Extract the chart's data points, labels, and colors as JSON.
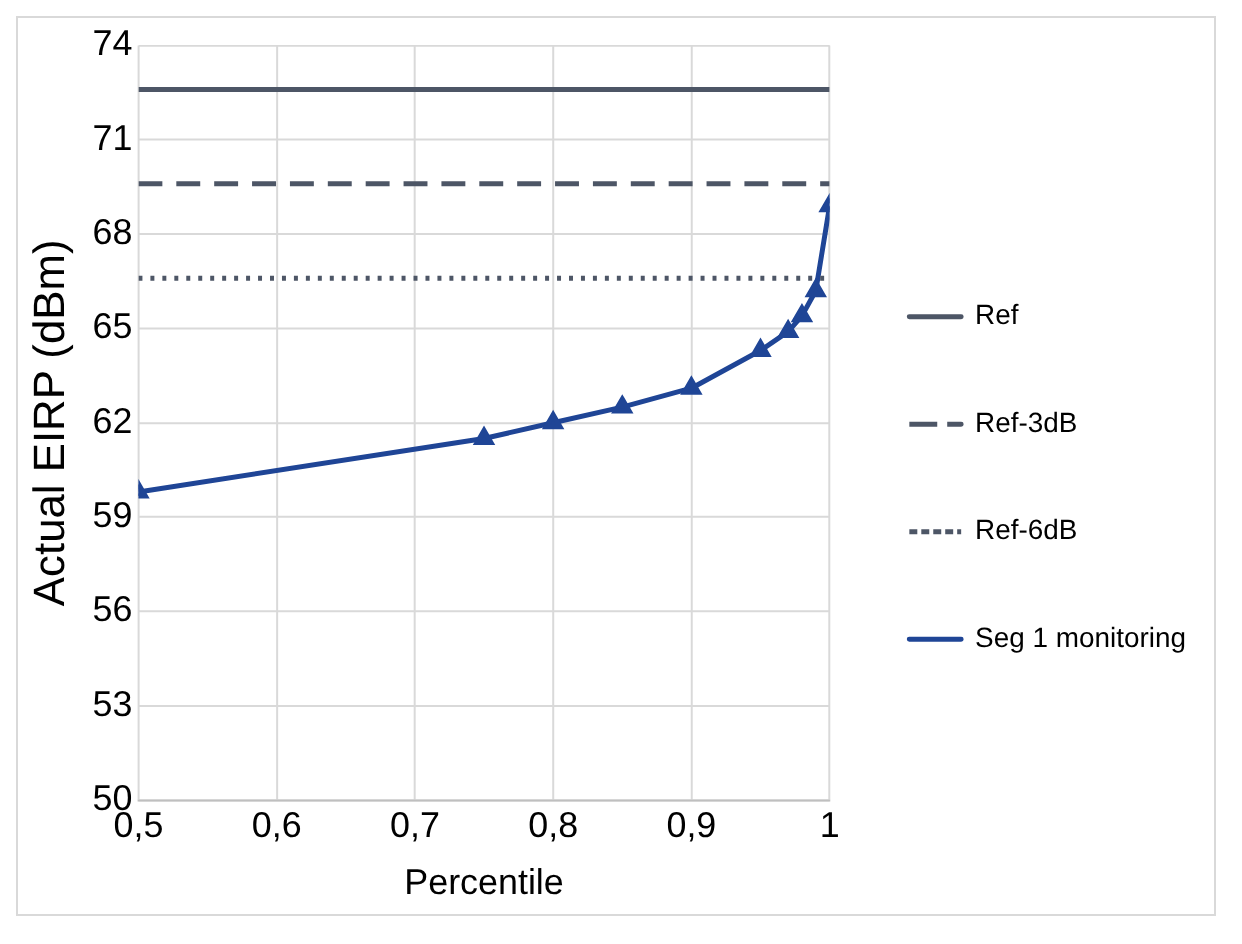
{
  "chart_data": {
    "type": "line",
    "xlabel": "Percentile",
    "ylabel": "Actual EIRP (dBm)",
    "xlim": [
      0.5,
      1
    ],
    "xticks": [
      {
        "value": 0.5,
        "label": "0,5"
      },
      {
        "value": 0.6,
        "label": "0,6"
      },
      {
        "value": 0.7,
        "label": "0,7"
      },
      {
        "value": 0.8,
        "label": "0,8"
      },
      {
        "value": 0.9,
        "label": "0,9"
      },
      1
    ],
    "ylim": [
      50,
      74
    ],
    "yticks": [
      50,
      53,
      56,
      59,
      62,
      65,
      68,
      71,
      74
    ],
    "grid": true,
    "legend": "right",
    "series": [
      {
        "name": "Ref",
        "color": "#4d5666",
        "x": [
          0.5,
          1
        ],
        "values": [
          72.6,
          72.6
        ],
        "line_style": "solid",
        "marker": "none"
      },
      {
        "name": "Ref-3dB",
        "color": "#4d5666",
        "x": [
          0.5,
          1
        ],
        "values": [
          69.6,
          69.6
        ],
        "line_style": "dashed",
        "marker": "none"
      },
      {
        "name": "Ref-6dB",
        "color": "#4d5666",
        "x": [
          0.5,
          1
        ],
        "values": [
          66.6,
          66.6
        ],
        "line_style": "dotted",
        "marker": "none"
      },
      {
        "name": "Seg 1 monitoring",
        "color": "#1f4596",
        "x": [
          0.5,
          0.75,
          0.8,
          0.85,
          0.9,
          0.95,
          0.97,
          0.98,
          0.99,
          1
        ],
        "values": [
          59.8,
          61.5,
          62.0,
          62.5,
          63.1,
          64.3,
          64.9,
          65.4,
          66.2,
          68.9
        ],
        "line_style": "solid",
        "marker": "triangle"
      }
    ]
  }
}
